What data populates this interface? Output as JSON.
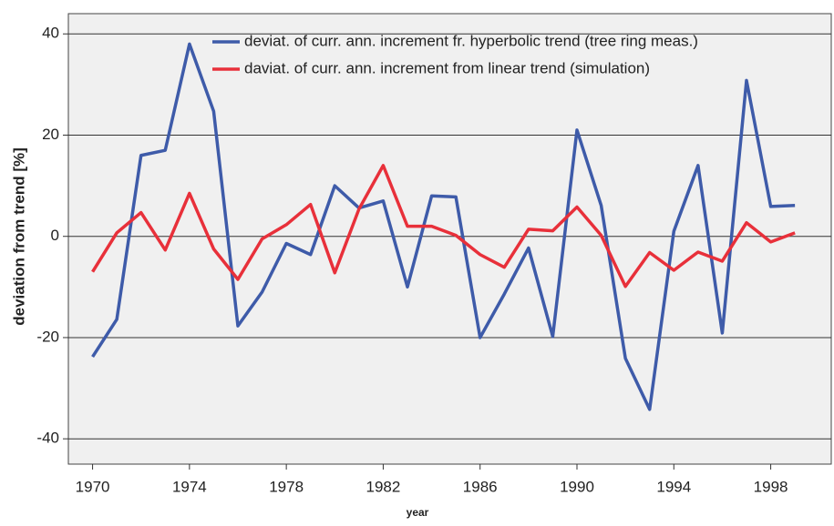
{
  "chart_data": {
    "type": "line",
    "x_label": "year",
    "y_label": "deviation from trend [%]",
    "x": [
      1970,
      1971,
      1972,
      1973,
      1974,
      1975,
      1976,
      1977,
      1978,
      1979,
      1980,
      1981,
      1982,
      1983,
      1984,
      1985,
      1986,
      1987,
      1988,
      1989,
      1990,
      1991,
      1992,
      1993,
      1994,
      1995,
      1996,
      1997,
      1998,
      1999
    ],
    "series": [
      {
        "name": "deviat. of curr. ann. increment fr. hyperbolic trend (tree ring meas.)",
        "color": "#3e5ba9",
        "values": [
          -23.8,
          -16.4,
          16,
          17,
          38,
          24.7,
          -17.7,
          -11,
          -1.4,
          -3.6,
          10,
          5.6,
          7,
          -10,
          8,
          7.8,
          -20,
          -11.4,
          -2.3,
          -19.8,
          21,
          6.1,
          -24.1,
          -34.2,
          1,
          14,
          -19.1,
          30.8,
          5.9,
          6.1
        ]
      },
      {
        "name": "daviat. of curr. ann. increment from linear trend (simulation)",
        "color": "#e8303a",
        "values": [
          -7,
          0.7,
          4.7,
          -2.7,
          8.5,
          -2.5,
          -8.5,
          -0.5,
          2.3,
          6.3,
          -7.2,
          5.4,
          14,
          2,
          2,
          0.2,
          -3.6,
          -6.1,
          1.4,
          1.1,
          5.8,
          0.2,
          -9.9,
          -3.2,
          -6.7,
          -3.1,
          -4.9,
          2.7,
          -1.1,
          0.7
        ]
      }
    ],
    "xlim": [
      1969,
      2000.5
    ],
    "xticks": [
      1970,
      1974,
      1978,
      1982,
      1986,
      1990,
      1994,
      1998
    ],
    "ylim": [
      -45,
      44
    ],
    "yticks": [
      -40,
      -20,
      0,
      20,
      40
    ],
    "grid": true,
    "legend": "top-right"
  }
}
